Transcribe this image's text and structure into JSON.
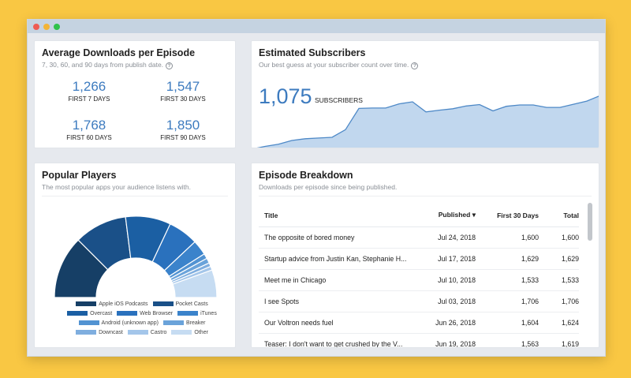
{
  "colors": {
    "accent": "#3d7bbf",
    "background": "#f9c743"
  },
  "downloads": {
    "title": "Average Downloads per Episode",
    "subtitle": "7, 30, 60, and 90 days from publish date.",
    "help_icon": "?",
    "stats": [
      {
        "value": "1,266",
        "label": "FIRST 7 DAYS"
      },
      {
        "value": "1,547",
        "label": "FIRST 30 DAYS"
      },
      {
        "value": "1,768",
        "label": "FIRST 60 DAYS"
      },
      {
        "value": "1,850",
        "label": "FIRST 90 DAYS"
      }
    ]
  },
  "subscribers": {
    "title": "Estimated Subscribers",
    "subtitle": "Our best guess at your subscriber count over time.",
    "help_icon": "?",
    "value": "1,075",
    "label": "SUBSCRIBERS"
  },
  "players": {
    "title": "Popular Players",
    "subtitle": "The most popular apps your audience listens with."
  },
  "episodes": {
    "title": "Episode Breakdown",
    "subtitle": "Downloads per episode since being published.",
    "columns": {
      "title": "Title",
      "published": "Published",
      "first30": "First 30 Days",
      "total": "Total"
    },
    "sort_icon": "▾",
    "rows": [
      {
        "title": "The opposite of bored money",
        "published": "Jul 24, 2018",
        "first30": "1,600",
        "total": "1,600"
      },
      {
        "title": "Startup advice from Justin Kan, Stephanie H...",
        "published": "Jul 17, 2018",
        "first30": "1,629",
        "total": "1,629"
      },
      {
        "title": "Meet me in Chicago",
        "published": "Jul 10, 2018",
        "first30": "1,533",
        "total": "1,533"
      },
      {
        "title": "I see Spots",
        "published": "Jul 03, 2018",
        "first30": "1,706",
        "total": "1,706"
      },
      {
        "title": "Our Voltron needs fuel",
        "published": "Jun 26, 2018",
        "first30": "1,604",
        "total": "1,624"
      },
      {
        "title": "Teaser: I don't want to get crushed by the V...",
        "published": "Jun 19, 2018",
        "first30": "1,563",
        "total": "1,619"
      }
    ]
  },
  "chart_data": [
    {
      "type": "area",
      "title": "Estimated Subscribers",
      "series": [
        {
          "values": [
            0,
            80,
            140,
            250,
            300,
            320,
            340,
            560,
            1170,
            1180,
            1180,
            1300,
            1360,
            1070,
            1120,
            1160,
            1240,
            1280,
            1100,
            1230,
            1270,
            1270,
            1200,
            1200,
            1290,
            1380,
            1540
          ]
        }
      ]
    },
    {
      "type": "pie",
      "title": "Popular Players",
      "categories": [
        "Apple iOS Podcasts",
        "Pocket Casts",
        "Overcast",
        "Web Browser",
        "iTunes",
        "Android (unknown app)",
        "Breaker",
        "Downcast",
        "Castro",
        "Other"
      ],
      "values": [
        25,
        21,
        18,
        12,
        6,
        2,
        2,
        1.5,
        1.5,
        11
      ],
      "colors": [
        "#163f66",
        "#1a5088",
        "#1b5fa3",
        "#2a71bd",
        "#3b83cb",
        "#5293d2",
        "#6aa3da",
        "#7faedf",
        "#a4c6ea",
        "#c6dcf2"
      ]
    }
  ]
}
